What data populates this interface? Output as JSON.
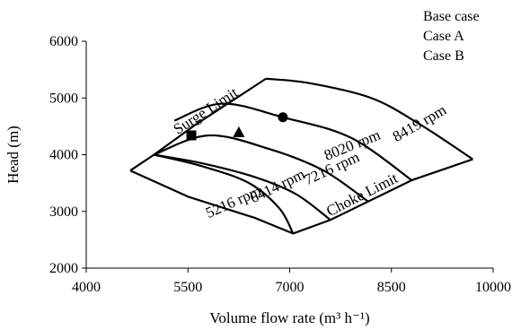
{
  "chart_data": {
    "type": "line",
    "xlabel": "Volume flow rate (m³ h⁻¹)",
    "ylabel": "Head (m)",
    "xlim": [
      4000,
      10000
    ],
    "ylim": [
      2000,
      6000
    ],
    "x_ticks": [
      4000,
      5500,
      7000,
      8500,
      10000
    ],
    "y_ticks": [
      2000,
      3000,
      4000,
      5000,
      6000
    ],
    "grid": false,
    "legend_position": "top-right",
    "legend": [
      {
        "label": "Base case",
        "marker": "circle"
      },
      {
        "label": "Case A",
        "marker": "square"
      },
      {
        "label": "Case B",
        "marker": "triangle"
      }
    ],
    "series": [
      {
        "name": "5216 rpm",
        "x": [
          5000,
          5700,
          6400,
          6850,
          7050
        ],
        "y": [
          4000,
          3800,
          3500,
          3050,
          2610
        ]
      },
      {
        "name": "6414 rpm",
        "x": [
          5000,
          5700,
          6500,
          7100,
          7600
        ],
        "y": [
          4000,
          3850,
          3600,
          3300,
          2850
        ]
      },
      {
        "name": "7216 rpm",
        "x": [
          5000,
          5800,
          6700,
          7500,
          8150
        ],
        "y": [
          4000,
          4340,
          4100,
          3720,
          3180
        ]
      },
      {
        "name": "8020 rpm",
        "x": [
          5300,
          6000,
          6900,
          7900,
          8800
        ],
        "y": [
          4600,
          4900,
          4660,
          4300,
          3550
        ]
      },
      {
        "name": "8419 rpm",
        "x": [
          6650,
          7300,
          8200,
          8900,
          9700
        ],
        "y": [
          5340,
          5260,
          5000,
          4550,
          3920
        ]
      },
      {
        "name": "Surge Limit",
        "x": [
          4650,
          5000,
          5600,
          6650
        ],
        "y": [
          3720,
          4000,
          4520,
          5340
        ]
      },
      {
        "name": "Choke Limit",
        "x": [
          4650,
          5500,
          6500,
          7050,
          7600,
          8800,
          9700
        ],
        "y": [
          3720,
          3260,
          2880,
          2610,
          2850,
          3550,
          3920
        ]
      }
    ],
    "points": [
      {
        "case": "Base case",
        "marker": "circle",
        "x": 6900,
        "y": 4660
      },
      {
        "case": "Case A",
        "marker": "square",
        "x": 5550,
        "y": 4340
      },
      {
        "case": "Case B",
        "marker": "triangle",
        "x": 6250,
        "y": 4390
      }
    ],
    "annotations": [
      {
        "text": "Surge Limit",
        "x": 5800,
        "y": 4700,
        "angle": -33
      },
      {
        "text": "Choke Limit",
        "x": 8100,
        "y": 3220,
        "angle": -27
      },
      {
        "text": "8419 rpm",
        "x": 8950,
        "y": 4480,
        "angle": -30
      },
      {
        "text": "8020 rpm",
        "x": 7950,
        "y": 4090,
        "angle": -22
      },
      {
        "text": "7216 rpm",
        "x": 7650,
        "y": 3680,
        "angle": -25
      },
      {
        "text": "6414 rpm",
        "x": 6850,
        "y": 3370,
        "angle": -26
      },
      {
        "text": "5216 rpm",
        "x": 6200,
        "y": 3090,
        "angle": -24
      }
    ]
  }
}
